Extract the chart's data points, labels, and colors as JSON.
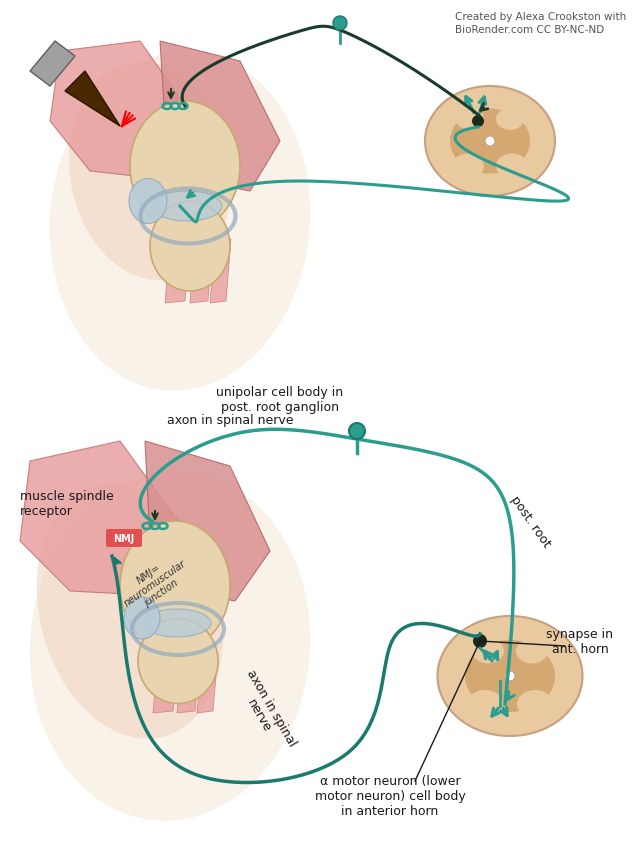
{
  "background_color": "#ffffff",
  "teal_color": "#2a9d8f",
  "teal_dark": "#1a7a6e",
  "skin_light": "#f5e6d3",
  "skin_medium": "#e8c9a0",
  "skin_dark": "#d4a574",
  "muscle_color": "#e8a0a0",
  "muscle_dark": "#c97070",
  "bone_color": "#e8d5b0",
  "cartilage_color": "#c8dde8",
  "nerve_teal": "#2a9d8f",
  "nerve_dark": "#1a5c52",
  "credit_text": "Created by Alexa Crookston with\nBioRender.com CC BY-NC-ND",
  "labels_bottom": {
    "muscle_spindle": "muscle spindle\nreceptor",
    "nmj_label": "NMJ",
    "nmj_full": "NMJ=\nneuromuscular\njunction",
    "unipolar": "unipolar cell body in\npost. root ganglion",
    "axon_in_spinal_nerve_top": "axon in spinal nerve",
    "post_root": "post. root",
    "axon_in_spinal_nerve_bottom": "axon in spinal\nnerve",
    "alpha_motor": "α motor neuron (lower\nmotor neuron) cell body\nin anterior horn",
    "synapse": "synapse in\nant. horn"
  }
}
